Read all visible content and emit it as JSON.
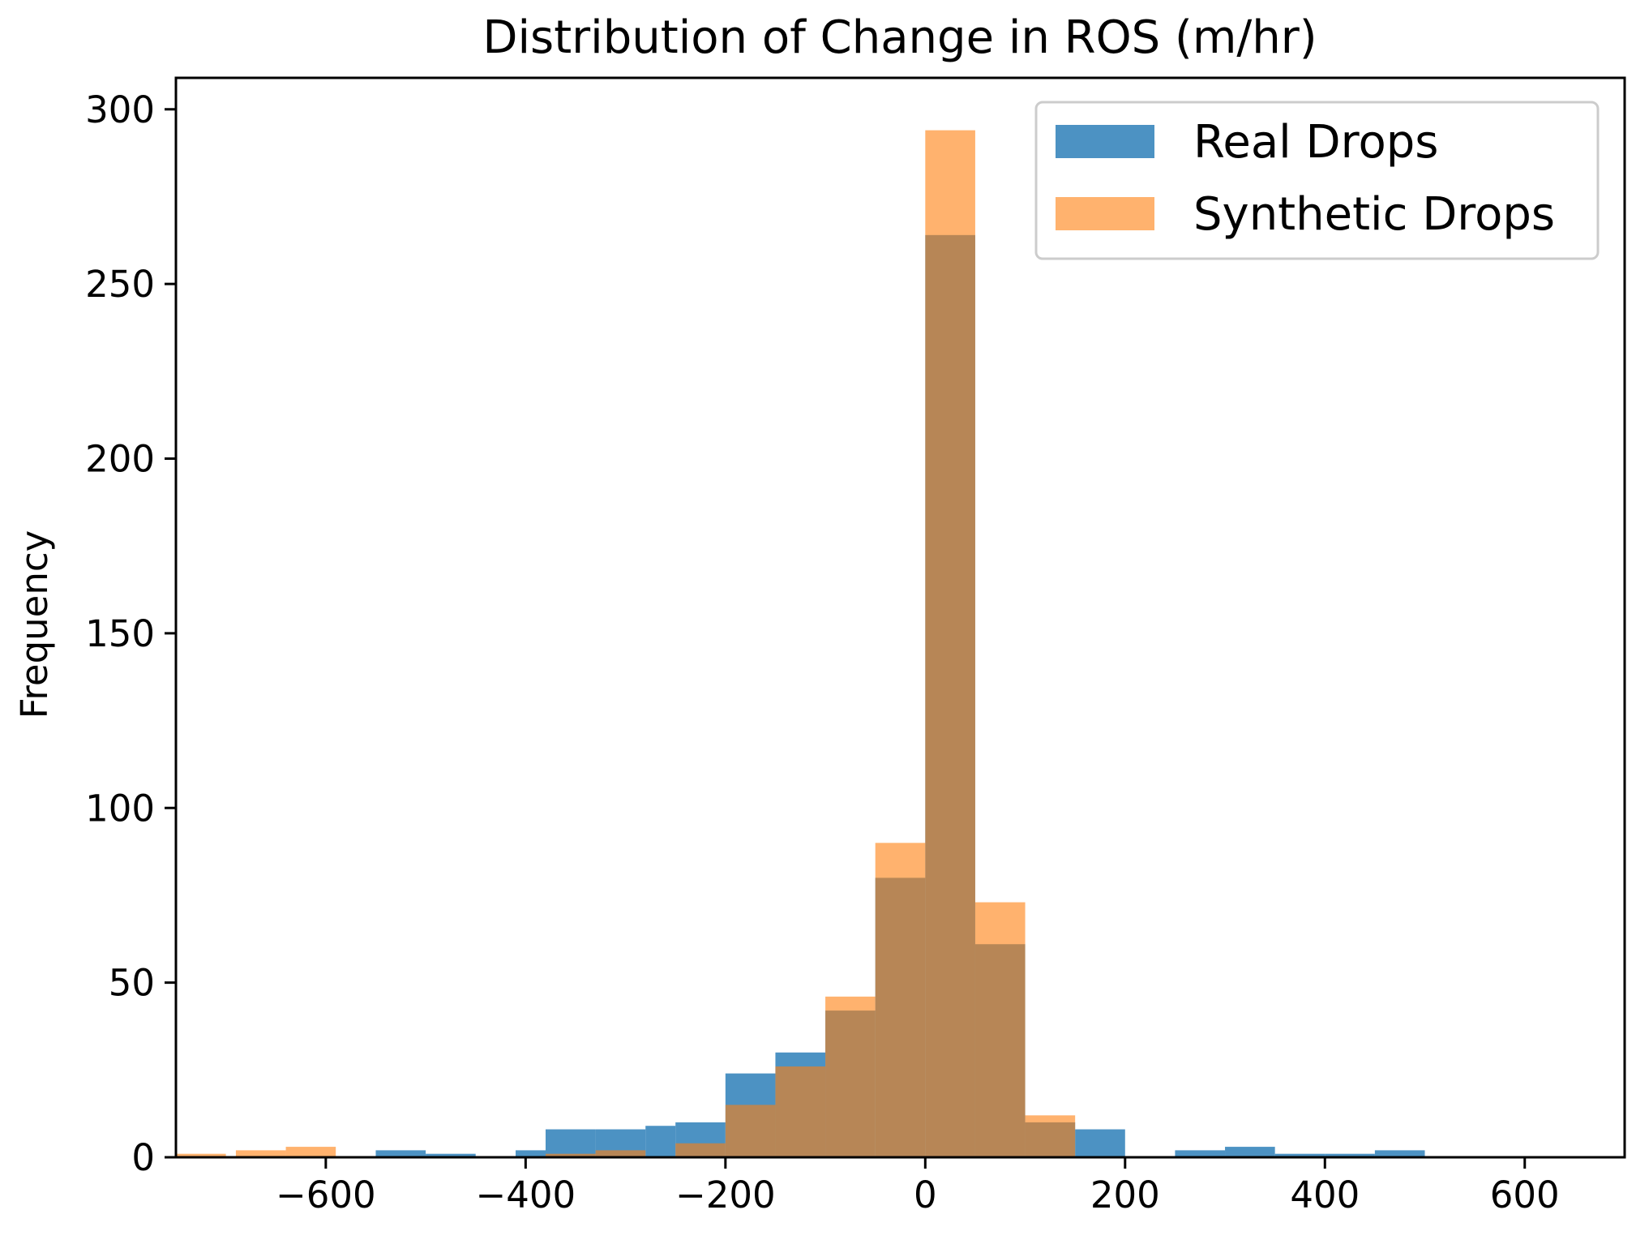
{
  "chart_data": {
    "type": "bar",
    "title": "Distribution of Change in ROS (m/hr)",
    "xlabel": "",
    "ylabel": "Frequency",
    "xlim": [
      -750,
      700
    ],
    "ylim": [
      0,
      309
    ],
    "xticks": [
      -600,
      -400,
      -200,
      0,
      200,
      400,
      600
    ],
    "xtick_labels": [
      "−600",
      "−400",
      "−200",
      "0",
      "200",
      "400",
      "600"
    ],
    "yticks": [
      0,
      50,
      100,
      150,
      200,
      250,
      300
    ],
    "ytick_labels": [
      "0",
      "50",
      "100",
      "150",
      "200",
      "250",
      "300"
    ],
    "grid": false,
    "legend_position": "top-right",
    "series": [
      {
        "name": "Real Drops",
        "color": "#1f77b4",
        "opacity": 0.8,
        "bins": [
          {
            "x0": -550,
            "x1": -500,
            "count": 2
          },
          {
            "x0": -500,
            "x1": -450,
            "count": 1
          },
          {
            "x0": -410,
            "x1": -380,
            "count": 2
          },
          {
            "x0": -380,
            "x1": -330,
            "count": 8
          },
          {
            "x0": -330,
            "x1": -280,
            "count": 8
          },
          {
            "x0": -280,
            "x1": -250,
            "count": 9
          },
          {
            "x0": -250,
            "x1": -200,
            "count": 10
          },
          {
            "x0": -200,
            "x1": -150,
            "count": 24
          },
          {
            "x0": -150,
            "x1": -100,
            "count": 30
          },
          {
            "x0": -100,
            "x1": -50,
            "count": 42
          },
          {
            "x0": -50,
            "x1": 0,
            "count": 80
          },
          {
            "x0": 0,
            "x1": 50,
            "count": 264
          },
          {
            "x0": 50,
            "x1": 100,
            "count": 61
          },
          {
            "x0": 100,
            "x1": 150,
            "count": 10
          },
          {
            "x0": 150,
            "x1": 200,
            "count": 8
          },
          {
            "x0": 250,
            "x1": 300,
            "count": 2
          },
          {
            "x0": 300,
            "x1": 350,
            "count": 3
          },
          {
            "x0": 350,
            "x1": 400,
            "count": 1
          },
          {
            "x0": 400,
            "x1": 450,
            "count": 1
          },
          {
            "x0": 450,
            "x1": 500,
            "count": 2
          }
        ]
      },
      {
        "name": "Synthetic Drops",
        "color": "#ff7f0e",
        "opacity": 0.6,
        "bins": [
          {
            "x0": -750,
            "x1": -700,
            "count": 1
          },
          {
            "x0": -690,
            "x1": -640,
            "count": 2
          },
          {
            "x0": -640,
            "x1": -590,
            "count": 3
          },
          {
            "x0": -380,
            "x1": -330,
            "count": 1
          },
          {
            "x0": -330,
            "x1": -280,
            "count": 2
          },
          {
            "x0": -250,
            "x1": -200,
            "count": 4
          },
          {
            "x0": -200,
            "x1": -150,
            "count": 15
          },
          {
            "x0": -150,
            "x1": -100,
            "count": 26
          },
          {
            "x0": -100,
            "x1": -50,
            "count": 46
          },
          {
            "x0": -50,
            "x1": 0,
            "count": 90
          },
          {
            "x0": 0,
            "x1": 50,
            "count": 294
          },
          {
            "x0": 50,
            "x1": 100,
            "count": 73
          },
          {
            "x0": 100,
            "x1": 150,
            "count": 12
          }
        ]
      }
    ]
  }
}
